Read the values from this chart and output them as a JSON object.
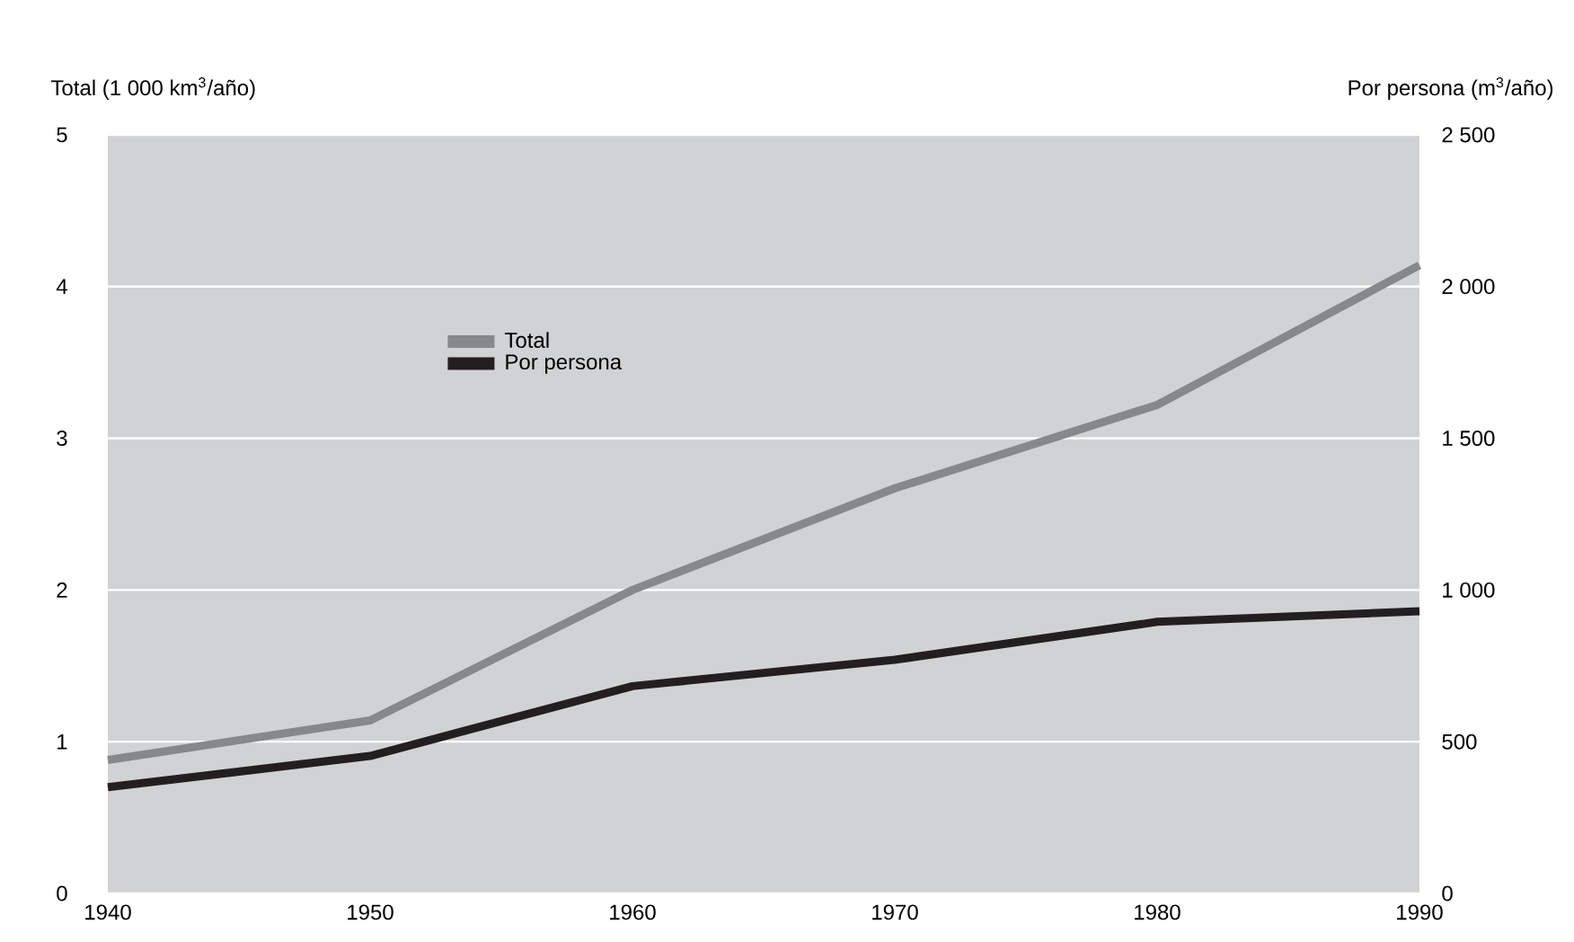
{
  "chart_data": {
    "type": "line",
    "ylabel": "Total (1 000 km$^{3}$/año)",
    "y2label": "Por persona (m$^{3}$/año)",
    "x": [
      1940,
      1950,
      1960,
      1970,
      1980,
      1990
    ],
    "xlim": [
      1940,
      1990
    ],
    "xticks": [
      1940,
      1950,
      1960,
      1970,
      1980,
      1990
    ],
    "ylim": [
      0,
      5
    ],
    "yticks": [
      0,
      1,
      2,
      3,
      4,
      5
    ],
    "y2lim": [
      0,
      2500
    ],
    "y2ticks": [
      0,
      500,
      {
        "value": 1000,
        "label": "1 000"
      },
      {
        "value": 1500,
        "label": "1 500"
      },
      {
        "value": 2000,
        "label": "2 000"
      },
      {
        "value": 2500,
        "label": "2 500"
      }
    ],
    "series": [
      {
        "name": "Total",
        "color": "#87888a",
        "values": [
          0.88,
          1.14,
          2.0,
          2.67,
          3.22,
          4.14
        ]
      },
      {
        "name": "Por persona",
        "color": "#231f20",
        "axis": "y2",
        "values": [
          350,
          453,
          683,
          770,
          895,
          930
        ]
      }
    ],
    "grid": "y",
    "legend": "top left",
    "marker": "none",
    "line_style": "solid"
  }
}
